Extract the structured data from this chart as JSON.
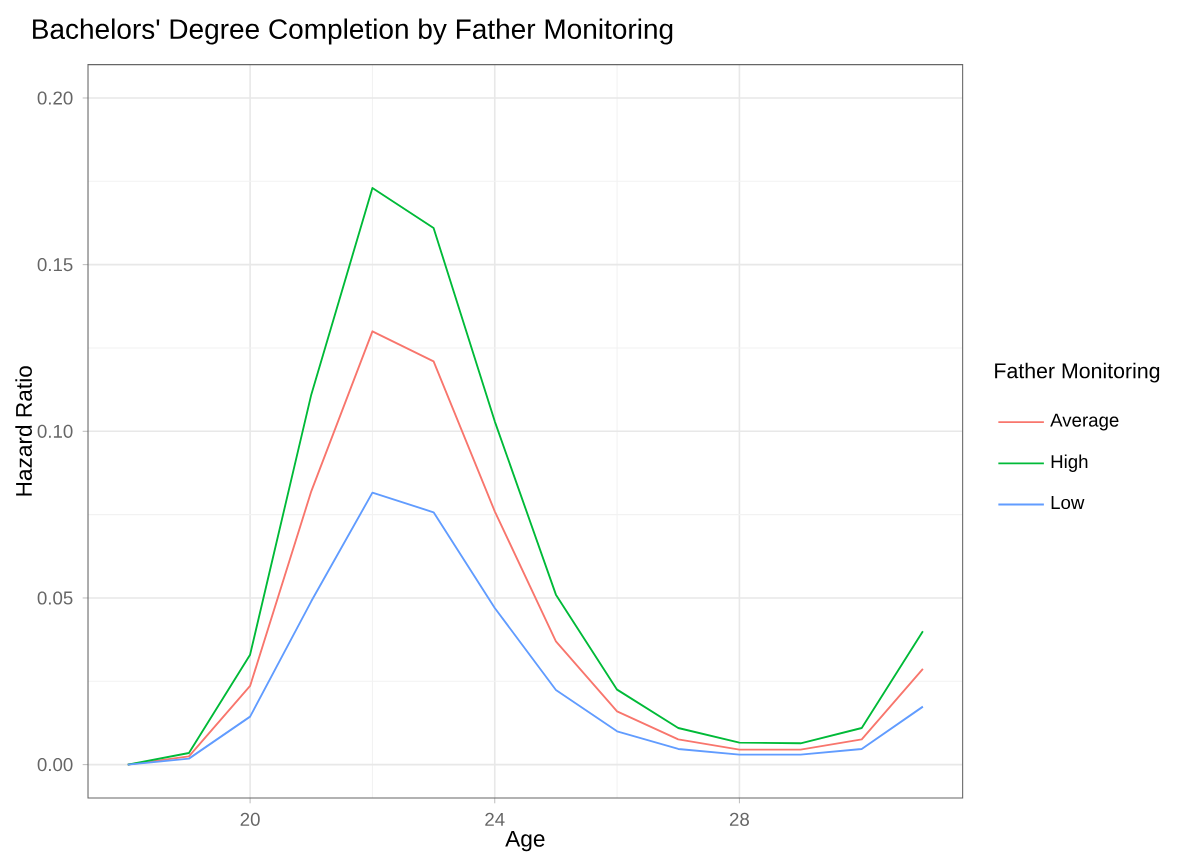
{
  "chart_data": {
    "type": "line",
    "title": "Bachelors' Degree Completion by Father Monitoring",
    "xlabel": "Age",
    "ylabel": "Hazard Ratio",
    "legend_title": "Father Monitoring",
    "x": [
      18,
      19,
      20,
      21,
      22,
      23,
      24,
      25,
      26,
      27,
      28,
      29,
      30,
      31
    ],
    "series": [
      {
        "name": "Average",
        "color": "#f8766d",
        "values": [
          0,
          0.0025,
          0.0236,
          0.082,
          0.13,
          0.121,
          0.076,
          0.037,
          0.016,
          0.0076,
          0.0045,
          0.0045,
          0.0076,
          0.0287
        ]
      },
      {
        "name": "High",
        "color": "#00ba38",
        "values": [
          0,
          0.0035,
          0.033,
          0.111,
          0.173,
          0.161,
          0.103,
          0.051,
          0.0225,
          0.011,
          0.0066,
          0.0064,
          0.011,
          0.04
        ]
      },
      {
        "name": "Low",
        "color": "#619cff",
        "values": [
          0,
          0.0018,
          0.0144,
          0.049,
          0.0816,
          0.0757,
          0.047,
          0.0224,
          0.01,
          0.0047,
          0.003,
          0.003,
          0.0047,
          0.0174
        ]
      }
    ],
    "xlim": [
      17.35,
      31.65
    ],
    "ylim": [
      -0.01,
      0.21
    ],
    "xticks": [
      20,
      24,
      28
    ],
    "yticks": [
      {
        "value": 0,
        "label": "0.00"
      },
      {
        "value": 0.05,
        "label": "0.05"
      },
      {
        "value": 0.1,
        "label": "0.10"
      },
      {
        "value": 0.15,
        "label": "0.15"
      },
      {
        "value": 0.2,
        "label": "0.20"
      }
    ],
    "grid": true,
    "legend": "right",
    "marker": "none",
    "line_style": "solid"
  }
}
